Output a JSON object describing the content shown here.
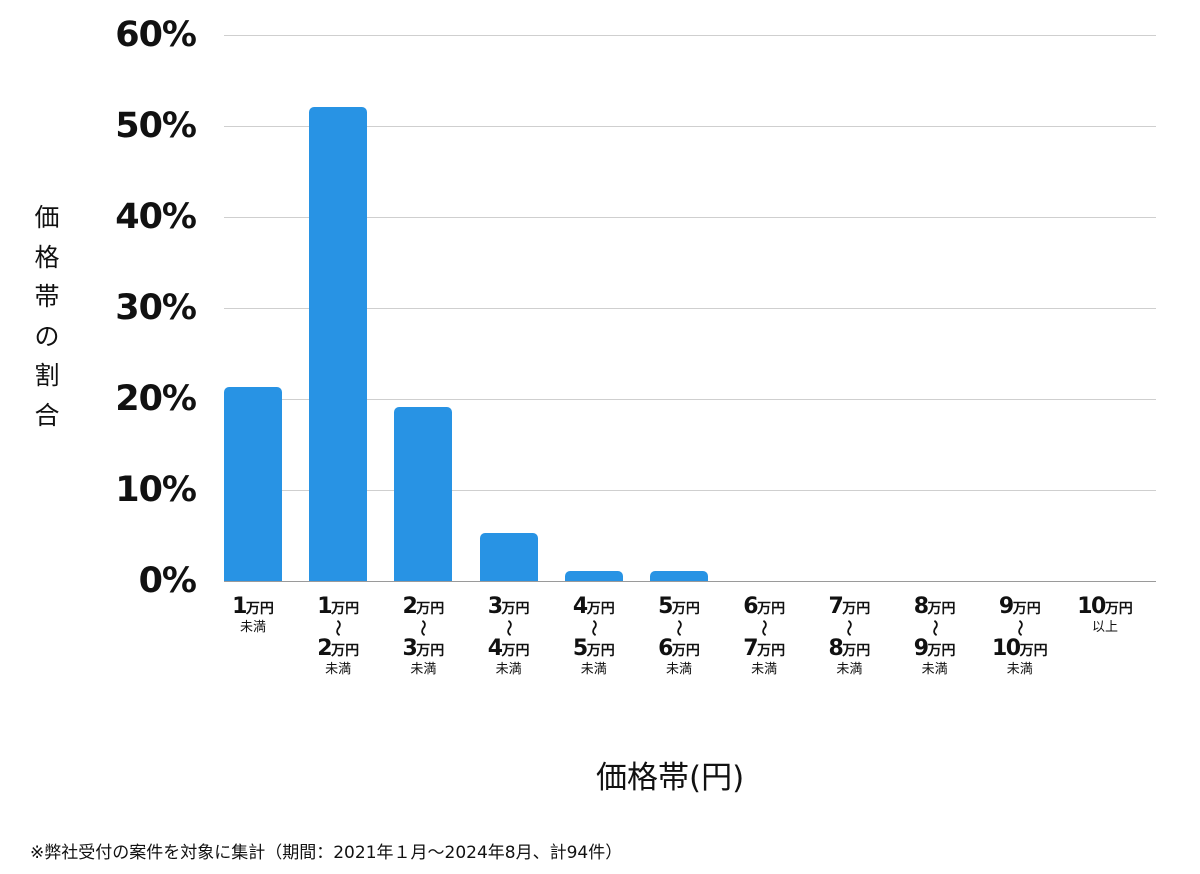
{
  "chart_data": {
    "type": "bar",
    "title": "",
    "xlabel": "価格帯(円)",
    "ylabel": "価格帯の割合",
    "ylim": [
      0,
      60
    ],
    "yticks": [
      "0%",
      "10%",
      "20%",
      "30%",
      "40%",
      "50%",
      "60%"
    ],
    "grid": true,
    "legend": null,
    "bar_color": "#2893e4",
    "categories": [
      "1万円未満",
      "1万円〜2万円未満",
      "2万円〜3万円未満",
      "3万円〜4万円未満",
      "4万円〜5万円未満",
      "5万円〜6万円未満",
      "6万円〜7万円未満",
      "7万円〜8万円未満",
      "8万円〜9万円未満",
      "9万円〜10万円未満",
      "10万円以上"
    ],
    "values": [
      21.3,
      52.1,
      19.1,
      5.3,
      1.1,
      1.1,
      0,
      0,
      0,
      0,
      0
    ],
    "footnote": "※弊社受付の案件を対象に集計（期間：2021年１月〜2024年8月、計94件）"
  },
  "axis": {
    "ylabel_chars": [
      "価",
      "格",
      "帯",
      "の",
      "割",
      "合"
    ],
    "xlabel": "価格帯(円)",
    "yticks": [
      {
        "label": "60%",
        "value": 60
      },
      {
        "label": "50%",
        "value": 50
      },
      {
        "label": "40%",
        "value": 40
      },
      {
        "label": "30%",
        "value": 30
      },
      {
        "label": "20%",
        "value": 20
      },
      {
        "label": "10%",
        "value": 10
      },
      {
        "label": "0%",
        "value": 0
      }
    ]
  },
  "xticks": [
    {
      "from": "1",
      "unit": "万円",
      "suffix": "未満",
      "to": null
    },
    {
      "from": "1",
      "unit": "万円",
      "to": "2",
      "suffix": "未満"
    },
    {
      "from": "2",
      "unit": "万円",
      "to": "3",
      "suffix": "未満"
    },
    {
      "from": "3",
      "unit": "万円",
      "to": "4",
      "suffix": "未満"
    },
    {
      "from": "4",
      "unit": "万円",
      "to": "5",
      "suffix": "未満"
    },
    {
      "from": "5",
      "unit": "万円",
      "to": "6",
      "suffix": "未満"
    },
    {
      "from": "6",
      "unit": "万円",
      "to": "7",
      "suffix": "未満"
    },
    {
      "from": "7",
      "unit": "万円",
      "to": "8",
      "suffix": "未満"
    },
    {
      "from": "8",
      "unit": "万円",
      "to": "9",
      "suffix": "未満"
    },
    {
      "from": "9",
      "unit": "万円",
      "to": "10",
      "suffix": "未満"
    },
    {
      "from": "10",
      "unit": "万円",
      "suffix": "以上",
      "to": null
    }
  ],
  "tilde": "〜",
  "footnote": "※弊社受付の案件を対象に集計（期間：2021年１月〜2024年8月、計94件）"
}
